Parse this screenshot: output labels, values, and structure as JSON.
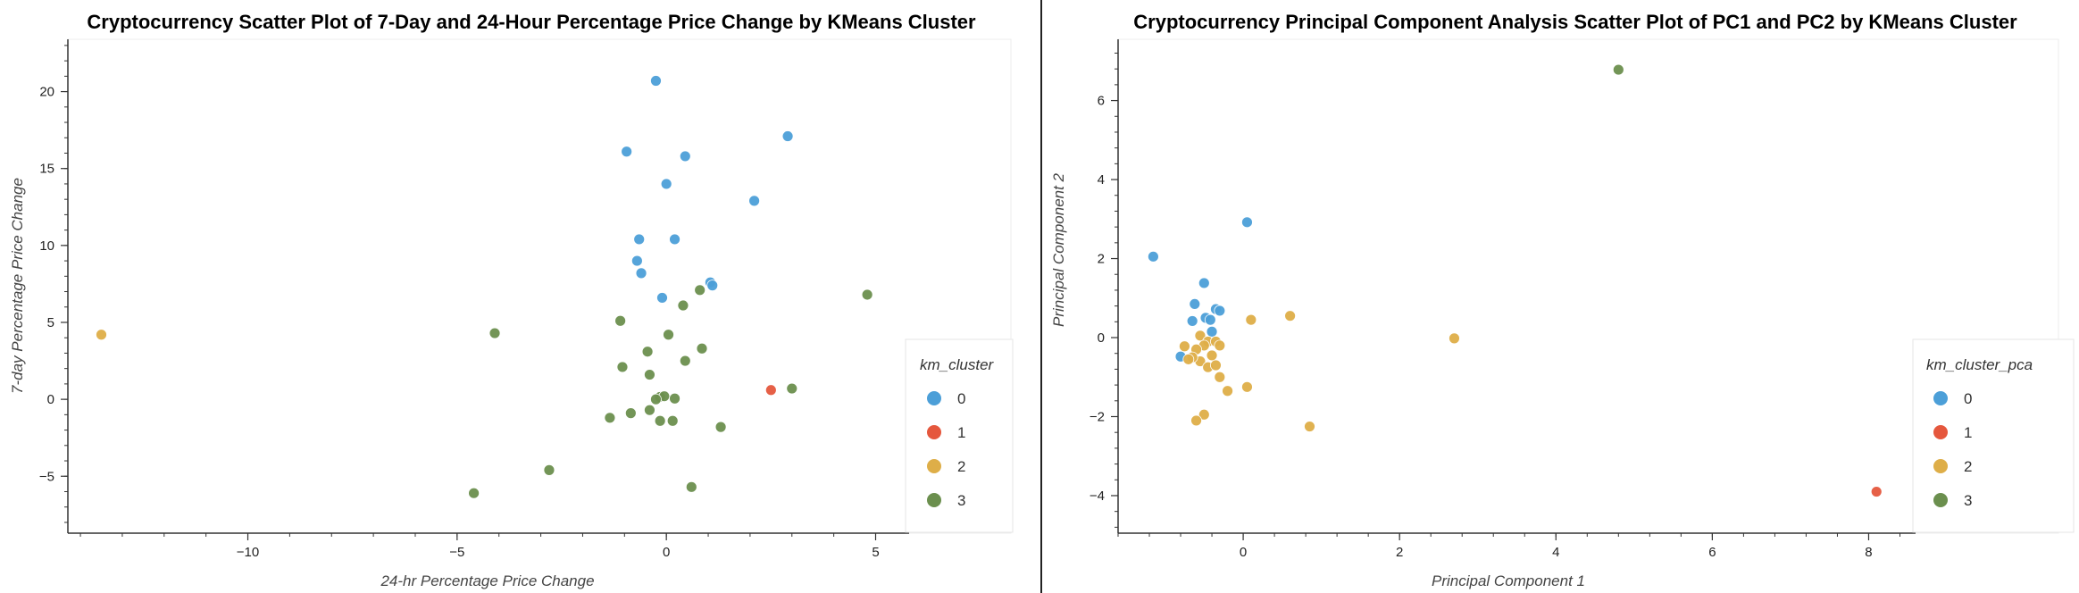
{
  "chart_data": [
    {
      "type": "scatter",
      "title": "Cryptocurrency Scatter Plot of 7-Day and 24-Hour Percentage Price Change by KMeans Cluster",
      "xlabel": "24-hr Percentage Price Change",
      "ylabel": "7-day Percentage Price Change",
      "xlim": [
        -14.3,
        5.8
      ],
      "ylim": [
        -8.7,
        23.4
      ],
      "xticks": [
        -10,
        -5,
        0,
        5
      ],
      "yticks": [
        -5,
        0,
        5,
        10,
        15,
        20
      ],
      "legend_title": "km_cluster",
      "legend_position": "bottom-right",
      "grid": false,
      "series": [
        {
          "name": "0",
          "color": "#4c9fd8",
          "points": [
            [
              -0.25,
              20.7
            ],
            [
              -0.95,
              16.1
            ],
            [
              0.45,
              15.8
            ],
            [
              2.9,
              17.1
            ],
            [
              0.0,
              14.0
            ],
            [
              2.1,
              12.9
            ],
            [
              -0.65,
              10.4
            ],
            [
              0.2,
              10.4
            ],
            [
              -0.7,
              9.0
            ],
            [
              -0.6,
              8.2
            ],
            [
              1.05,
              7.6
            ],
            [
              1.1,
              7.4
            ],
            [
              -0.1,
              6.6
            ]
          ]
        },
        {
          "name": "1",
          "color": "#e5573d",
          "points": [
            [
              2.5,
              0.6
            ]
          ]
        },
        {
          "name": "2",
          "color": "#deae48",
          "points": [
            [
              -13.5,
              4.2
            ]
          ]
        },
        {
          "name": "3",
          "color": "#6b8f4e",
          "points": [
            [
              4.8,
              6.8
            ],
            [
              0.8,
              7.1
            ],
            [
              0.4,
              6.1
            ],
            [
              -1.1,
              5.1
            ],
            [
              -4.1,
              4.3
            ],
            [
              0.05,
              4.2
            ],
            [
              0.85,
              3.3
            ],
            [
              -0.45,
              3.1
            ],
            [
              0.45,
              2.5
            ],
            [
              -1.05,
              2.1
            ],
            [
              -0.4,
              1.6
            ],
            [
              3.0,
              0.7
            ],
            [
              -0.15,
              0.15
            ],
            [
              -0.05,
              0.2
            ],
            [
              -0.25,
              0.0
            ],
            [
              0.2,
              0.05
            ],
            [
              -0.4,
              -0.7
            ],
            [
              -0.85,
              -0.9
            ],
            [
              -1.35,
              -1.2
            ],
            [
              -0.15,
              -1.4
            ],
            [
              0.15,
              -1.4
            ],
            [
              1.3,
              -1.8
            ],
            [
              -2.8,
              -4.6
            ],
            [
              0.6,
              -5.7
            ],
            [
              -4.6,
              -6.1
            ]
          ]
        }
      ]
    },
    {
      "type": "scatter",
      "title": "Cryptocurrency Principal Component Analysis Scatter Plot of PC1 and PC2 by KMeans Cluster",
      "xlabel": "Principal Component 1",
      "ylabel": "Principal Component 2",
      "xlim": [
        -1.6,
        8.6
      ],
      "ylim": [
        -4.95,
        7.55
      ],
      "xticks": [
        0,
        2,
        4,
        6,
        8
      ],
      "yticks": [
        -4,
        -2,
        0,
        2,
        4,
        6
      ],
      "legend_title": "km_cluster_pca",
      "legend_position": "bottom-right",
      "grid": false,
      "series": [
        {
          "name": "0",
          "color": "#4c9fd8",
          "points": [
            [
              -1.15,
              2.05
            ],
            [
              0.05,
              2.92
            ],
            [
              -0.5,
              1.38
            ],
            [
              -0.62,
              0.85
            ],
            [
              -0.35,
              0.72
            ],
            [
              -0.3,
              0.68
            ],
            [
              -0.48,
              0.5
            ],
            [
              -0.42,
              0.45
            ],
            [
              -0.65,
              0.42
            ],
            [
              -0.4,
              0.15
            ],
            [
              -0.8,
              -0.48
            ]
          ]
        },
        {
          "name": "1",
          "color": "#e5573d",
          "points": [
            [
              8.1,
              -3.9
            ]
          ]
        },
        {
          "name": "2",
          "color": "#deae48",
          "points": [
            [
              2.7,
              -0.02
            ],
            [
              0.6,
              0.55
            ],
            [
              0.1,
              0.45
            ],
            [
              -0.55,
              0.05
            ],
            [
              -0.45,
              -0.1
            ],
            [
              -0.35,
              -0.1
            ],
            [
              -0.3,
              -0.2
            ],
            [
              -0.5,
              -0.2
            ],
            [
              -0.75,
              -0.22
            ],
            [
              -0.6,
              -0.3
            ],
            [
              -0.4,
              -0.45
            ],
            [
              -0.55,
              -0.6
            ],
            [
              -0.65,
              -0.5
            ],
            [
              -0.7,
              -0.55
            ],
            [
              -0.45,
              -0.75
            ],
            [
              -0.35,
              -0.7
            ],
            [
              -0.3,
              -1.0
            ],
            [
              -0.2,
              -1.35
            ],
            [
              0.05,
              -1.25
            ],
            [
              -0.5,
              -1.95
            ],
            [
              -0.6,
              -2.1
            ],
            [
              0.85,
              -2.25
            ]
          ]
        },
        {
          "name": "3",
          "color": "#6b8f4e",
          "points": [
            [
              4.8,
              6.78
            ]
          ]
        }
      ]
    }
  ]
}
